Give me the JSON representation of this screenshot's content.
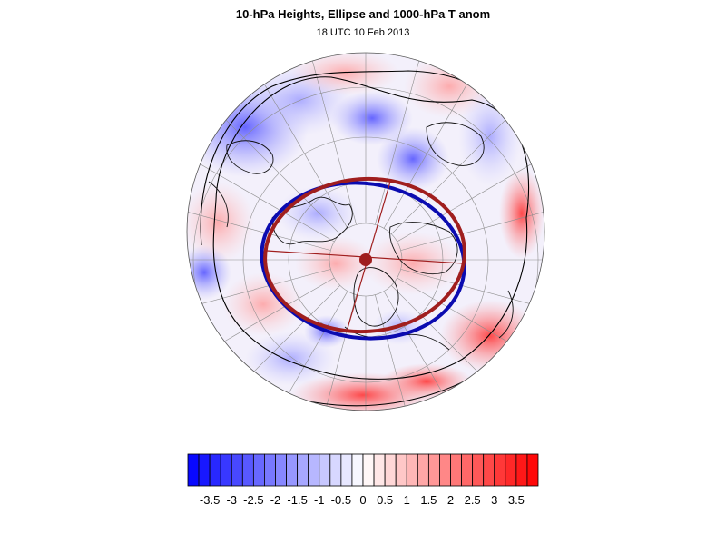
{
  "title": "10-hPa Heights, Ellipse and 1000-hPa T anom",
  "subtitle": "18 UTC 10 Feb 2013",
  "colorbar": {
    "labels": [
      "-3.5",
      "-3",
      "-2.5",
      "-2",
      "-1.5",
      "-1",
      "-0.5",
      "0",
      "0.5",
      "1",
      "1.5",
      "2",
      "2.5",
      "3",
      "3.5"
    ],
    "min": -4,
    "max": 4,
    "step": 0.25,
    "color_negative": "#0000ff",
    "color_positive": "#ff0000",
    "color_zero": "#ffffff"
  },
  "map": {
    "projection": "polar-stereographic",
    "background_color": "#f2f2ff",
    "coastline_color": "#111111",
    "height_contour_color": "#000000",
    "ellipse_fitted_color": "#a01e1e",
    "ellipse_contour_color": "#0000aa",
    "center_marker_color": "#a01e1e"
  }
}
